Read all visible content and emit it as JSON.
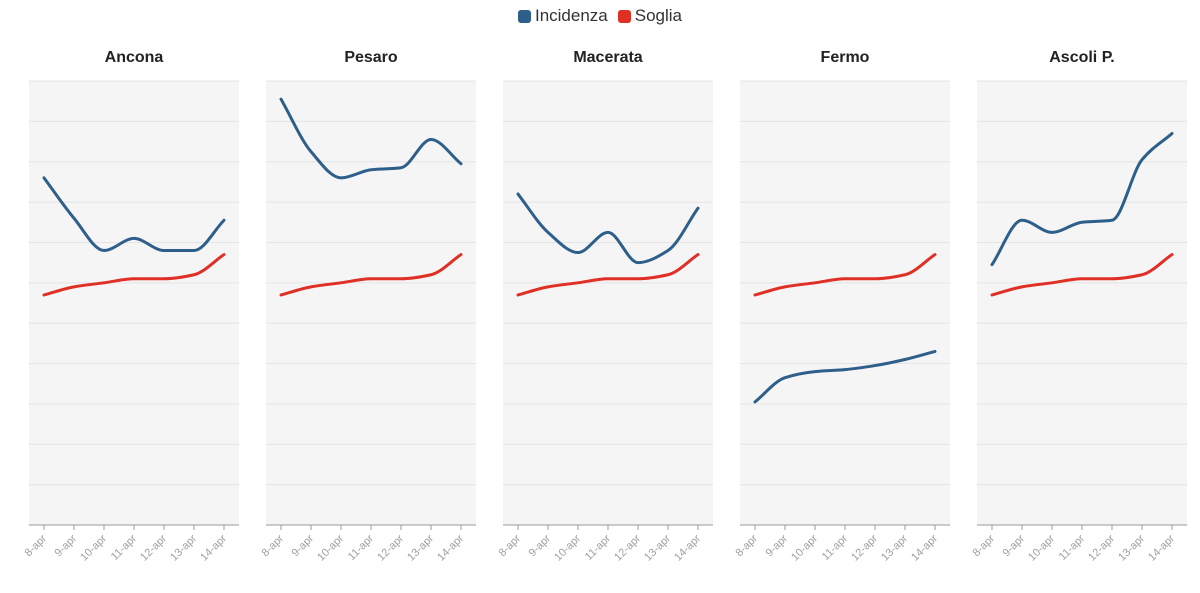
{
  "legend": [
    {
      "label": "Incidenza",
      "color": "#2e5f8a"
    },
    {
      "label": "Soglia",
      "color": "#e03026"
    }
  ],
  "chart_data": {
    "type": "line",
    "x": [
      "8-apr",
      "9-apr",
      "10-apr",
      "11-apr",
      "12-apr",
      "13-apr",
      "14-apr"
    ],
    "ylim": [
      0,
      220
    ],
    "grid": true,
    "legend_position": "top-center",
    "panels": [
      {
        "title": "Ancona",
        "series": [
          {
            "name": "Incidenza",
            "values": [
              172,
              152,
              136,
              142,
              136,
              136,
              151
            ]
          },
          {
            "name": "Soglia",
            "values": [
              114,
              118,
              120,
              122,
              122,
              124,
              134
            ]
          }
        ]
      },
      {
        "title": "Pesaro",
        "series": [
          {
            "name": "Incidenza",
            "values": [
              211,
              185,
              172,
              176,
              177,
              191,
              179
            ]
          },
          {
            "name": "Soglia",
            "values": [
              114,
              118,
              120,
              122,
              122,
              124,
              134
            ]
          }
        ]
      },
      {
        "title": "Macerata",
        "series": [
          {
            "name": "Incidenza",
            "values": [
              164,
              145,
              135,
              145,
              130,
              136,
              157
            ]
          },
          {
            "name": "Soglia",
            "values": [
              114,
              118,
              120,
              122,
              122,
              124,
              134
            ]
          }
        ]
      },
      {
        "title": "Fermo",
        "series": [
          {
            "name": "Incidenza",
            "values": [
              61,
              73,
              76,
              77,
              79,
              82,
              86
            ]
          },
          {
            "name": "Soglia",
            "values": [
              114,
              118,
              120,
              122,
              122,
              124,
              134
            ]
          }
        ]
      },
      {
        "title": "Ascoli P.",
        "series": [
          {
            "name": "Incidenza",
            "values": [
              129,
              151,
              145,
              150,
              151,
              181,
              194
            ]
          },
          {
            "name": "Soglia",
            "values": [
              114,
              118,
              120,
              122,
              122,
              124,
              134
            ]
          }
        ]
      }
    ]
  }
}
